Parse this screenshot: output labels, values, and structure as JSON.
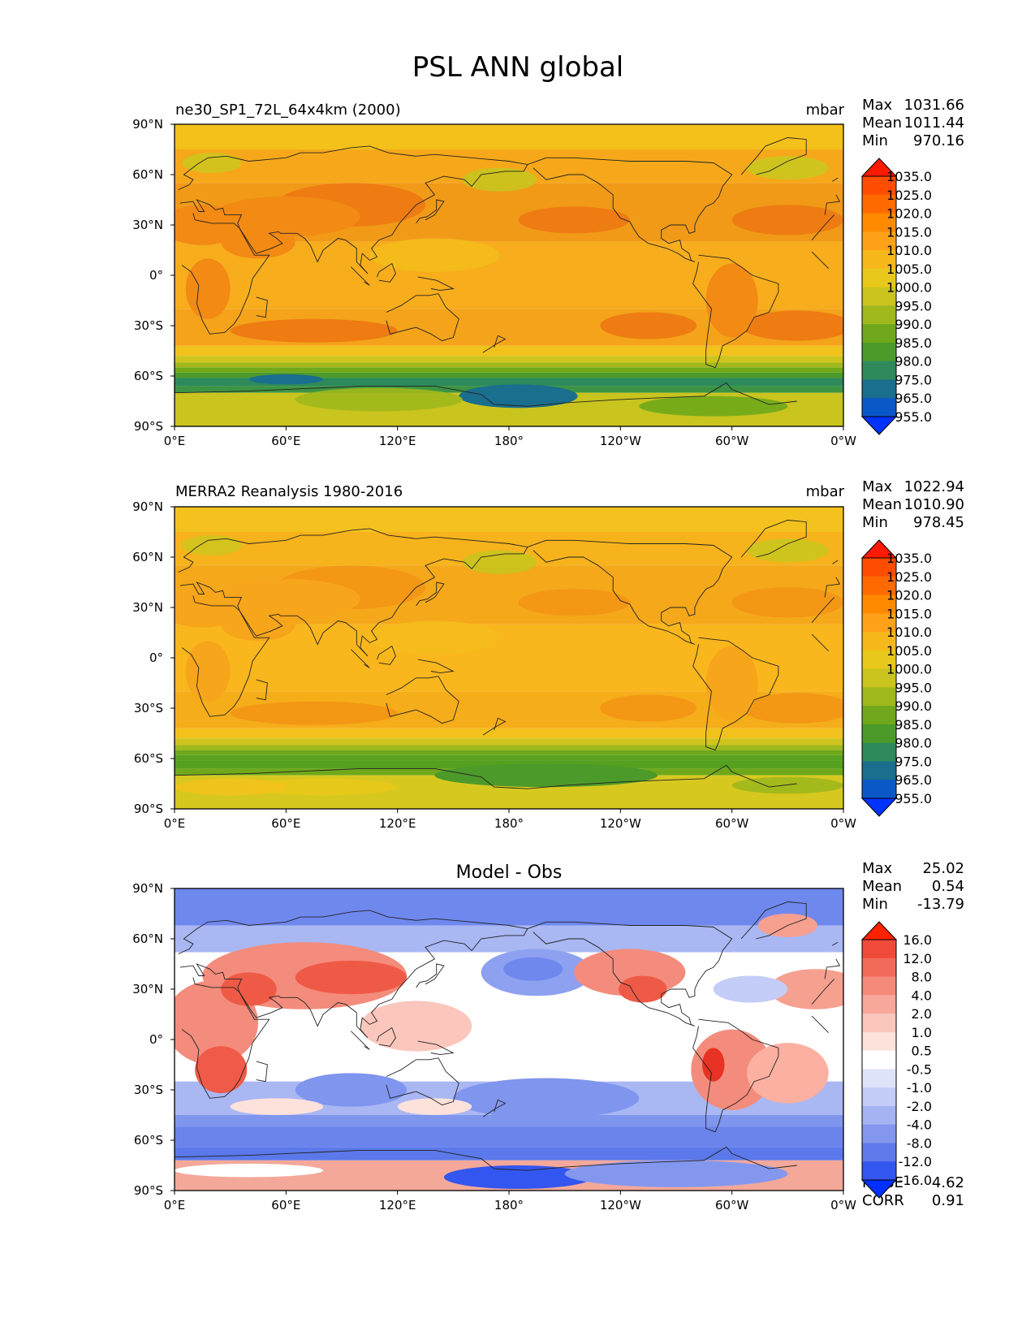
{
  "figure_title": "PSL ANN global",
  "chart_data": [
    {
      "type": "heatmap",
      "panel": "test",
      "title_left": "ne30_SP1_72L_64x4km (2000)",
      "units": "mbar",
      "stats": {
        "max_label": "Max",
        "max": "1031.66",
        "mean_label": "Mean",
        "mean": "1011.44",
        "min_label": "Min",
        "min": "970.16"
      },
      "x_ticks": [
        "0°E",
        "60°E",
        "120°E",
        "180°",
        "120°W",
        "60°W",
        "0°W"
      ],
      "y_ticks": [
        "90°N",
        "60°N",
        "30°N",
        "0°",
        "30°S",
        "60°S",
        "90°S"
      ],
      "colorbar_levels": [
        "1035.0",
        "1025.0",
        "1020.0",
        "1015.0",
        "1010.0",
        "1005.0",
        "1000.0",
        "995.0",
        "990.0",
        "985.0",
        "980.0",
        "975.0",
        "965.0",
        "955.0"
      ],
      "colorbar_colors": [
        "#ff1a00",
        "#ff4d00",
        "#ff6a00",
        "#ff8a00",
        "#ffa21a",
        "#f7b81c",
        "#e8c81a",
        "#c9c41e",
        "#9fb81c",
        "#6fa81a",
        "#4c9a2a",
        "#2e8a5a",
        "#1a6e8e",
        "#0a58c8",
        "#0033ff"
      ],
      "field_style": "psl_model"
    },
    {
      "type": "heatmap",
      "panel": "reference",
      "title_left": "MERRA2 Reanalysis 1980-2016",
      "units": "mbar",
      "stats": {
        "max_label": "Max",
        "max": "1022.94",
        "mean_label": "Mean",
        "mean": "1010.90",
        "min_label": "Min",
        "min": "978.45"
      },
      "x_ticks": [
        "0°E",
        "60°E",
        "120°E",
        "180°",
        "120°W",
        "60°W",
        "0°W"
      ],
      "y_ticks": [
        "90°N",
        "60°N",
        "30°N",
        "0°",
        "30°S",
        "60°S",
        "90°S"
      ],
      "colorbar_levels": [
        "1035.0",
        "1025.0",
        "1020.0",
        "1015.0",
        "1010.0",
        "1005.0",
        "1000.0",
        "995.0",
        "990.0",
        "985.0",
        "980.0",
        "975.0",
        "965.0",
        "955.0"
      ],
      "colorbar_colors": [
        "#ff1a00",
        "#ff4d00",
        "#ff6a00",
        "#ff8a00",
        "#ffa21a",
        "#f7b81c",
        "#e8c81a",
        "#c9c41e",
        "#9fb81c",
        "#6fa81a",
        "#4c9a2a",
        "#2e8a5a",
        "#1a6e8e",
        "#0a58c8",
        "#0033ff"
      ],
      "field_style": "psl_obs"
    },
    {
      "type": "heatmap",
      "panel": "difference",
      "title_center": "Model - Obs",
      "stats": {
        "max_label": "Max",
        "max": "25.02",
        "mean_label": "Mean",
        "mean": "0.54",
        "min_label": "Min",
        "min": "-13.79"
      },
      "metrics": {
        "rmse_label": "RMSE",
        "rmse": "4.62",
        "corr_label": "CORR",
        "corr": "0.91"
      },
      "x_ticks": [
        "0°E",
        "60°E",
        "120°E",
        "180°",
        "120°W",
        "60°W",
        "0°W"
      ],
      "y_ticks": [
        "90°N",
        "60°N",
        "30°N",
        "0°",
        "30°S",
        "60°S",
        "90°S"
      ],
      "colorbar_levels": [
        "16.0",
        "12.0",
        "8.0",
        "4.0",
        "2.0",
        "1.0",
        "0.5",
        "-0.5",
        "-1.0",
        "-2.0",
        "-4.0",
        "-8.0",
        "-12.0",
        "-16.0"
      ],
      "colorbar_colors": [
        "#ff2200",
        "#f04a3a",
        "#f26a5a",
        "#f58a7a",
        "#f8a89a",
        "#fbc6bc",
        "#fde2dc",
        "#ffffff",
        "#dfe4fb",
        "#c4cdf7",
        "#a5b3f3",
        "#8497ef",
        "#5f78ea",
        "#3355f0",
        "#0030ff"
      ],
      "field_style": "psl_diff"
    }
  ]
}
